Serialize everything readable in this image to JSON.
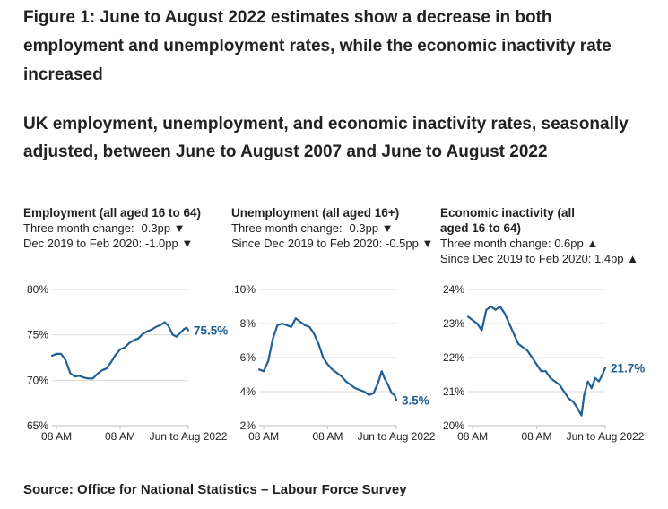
{
  "figure": {
    "title": "Figure 1: June to August 2022 estimates show a decrease in both employment and unemployment rates, while the economic inactivity rate increased",
    "subtitle": "UK employment, unemployment, and economic inactivity rates, seasonally adjusted, between June to August 2007 and June to August 2022",
    "source": "Source: Office for National Statistics – Labour Force Survey"
  },
  "colors": {
    "line": "#206095",
    "grid": "#d9d9d9",
    "axis": "#bebebe",
    "text": "#222222"
  },
  "panels": [
    {
      "title": "Employment (all aged 16 to 64)",
      "line1": "Three month change: -0.3pp ▼",
      "line2": "Dec 2019 to Feb 2020: -1.0pp ▼",
      "end_label": "75.5%"
    },
    {
      "title": "Unemployment (all aged 16+)",
      "line1": "Three month change: -0.3pp ▼",
      "line2": "Since Dec 2019 to Feb 2020: -0.5pp ▼",
      "end_label": "3.5%"
    },
    {
      "title": "Economic inactivity (all aged 16 to 64)",
      "line1": "Three month change: 0.6pp ▲",
      "line2": "Since Dec 2019 to Feb 2020: 1.4pp ▲",
      "end_label": "21.7%"
    }
  ],
  "chart_data": [
    {
      "type": "line",
      "name": "Employment",
      "x": [
        2007.5,
        2008.0,
        2008.5,
        2009.0,
        2009.5,
        2010.0,
        2010.5,
        2011.0,
        2011.5,
        2012.0,
        2012.5,
        2013.0,
        2013.5,
        2014.0,
        2014.5,
        2015.0,
        2015.5,
        2016.0,
        2016.5,
        2017.0,
        2017.5,
        2018.0,
        2018.5,
        2019.0,
        2019.5,
        2019.9,
        2020.3,
        2020.8,
        2021.2,
        2021.6,
        2022.0,
        2022.3,
        2022.5
      ],
      "values": [
        72.7,
        72.9,
        72.9,
        72.2,
        70.8,
        70.4,
        70.5,
        70.3,
        70.2,
        70.2,
        70.7,
        71.1,
        71.3,
        72.0,
        72.8,
        73.4,
        73.6,
        74.1,
        74.4,
        74.6,
        75.1,
        75.4,
        75.6,
        75.9,
        76.1,
        76.4,
        76.0,
        75.0,
        74.8,
        75.2,
        75.6,
        75.8,
        75.5
      ],
      "ylim": [
        65,
        80
      ],
      "yticks": [
        "80%",
        "75%",
        "70%",
        "65%"
      ],
      "xticks": [
        "08 AM",
        "08 AM",
        "Jun to Aug 2022"
      ]
    },
    {
      "type": "line",
      "name": "Unemployment",
      "x": [
        2007.5,
        2008.0,
        2008.5,
        2009.0,
        2009.5,
        2010.0,
        2010.5,
        2011.0,
        2011.5,
        2012.0,
        2012.5,
        2013.0,
        2013.5,
        2014.0,
        2014.5,
        2015.0,
        2015.5,
        2016.0,
        2016.5,
        2017.0,
        2017.5,
        2018.0,
        2018.5,
        2019.0,
        2019.5,
        2020.0,
        2020.5,
        2020.9,
        2021.2,
        2021.6,
        2022.0,
        2022.3,
        2022.5
      ],
      "values": [
        5.3,
        5.2,
        5.8,
        7.1,
        7.9,
        8.0,
        7.9,
        7.8,
        8.3,
        8.1,
        7.9,
        7.8,
        7.4,
        6.8,
        6.0,
        5.6,
        5.3,
        5.1,
        4.9,
        4.6,
        4.4,
        4.2,
        4.1,
        4.0,
        3.8,
        3.9,
        4.5,
        5.2,
        4.8,
        4.4,
        3.9,
        3.8,
        3.5
      ],
      "ylim": [
        2,
        10
      ],
      "yticks": [
        "10%",
        "8%",
        "6%",
        "4%",
        "2%"
      ],
      "xticks": [
        "08 AM",
        "08 AM",
        "Jun to Aug 2022"
      ]
    },
    {
      "type": "line",
      "name": "Economic inactivity",
      "x": [
        2007.5,
        2008.0,
        2008.5,
        2009.0,
        2009.5,
        2010.0,
        2010.5,
        2011.0,
        2011.5,
        2012.0,
        2012.5,
        2013.0,
        2013.5,
        2014.0,
        2014.5,
        2015.0,
        2015.5,
        2016.0,
        2016.5,
        2017.0,
        2017.5,
        2018.0,
        2018.5,
        2019.0,
        2019.5,
        2019.9,
        2020.2,
        2020.6,
        2021.0,
        2021.4,
        2021.8,
        2022.2,
        2022.5
      ],
      "values": [
        23.2,
        23.1,
        23.0,
        22.8,
        23.4,
        23.5,
        23.4,
        23.5,
        23.3,
        23.0,
        22.7,
        22.4,
        22.3,
        22.2,
        22.0,
        21.8,
        21.6,
        21.6,
        21.4,
        21.3,
        21.2,
        21.0,
        20.8,
        20.7,
        20.5,
        20.3,
        20.9,
        21.3,
        21.1,
        21.4,
        21.3,
        21.5,
        21.7
      ],
      "ylim": [
        20,
        24
      ],
      "yticks": [
        "24%",
        "23%",
        "22%",
        "21%",
        "20%"
      ],
      "xticks": [
        "08 AM",
        "08 AM",
        "Jun to Aug 2022"
      ]
    }
  ]
}
